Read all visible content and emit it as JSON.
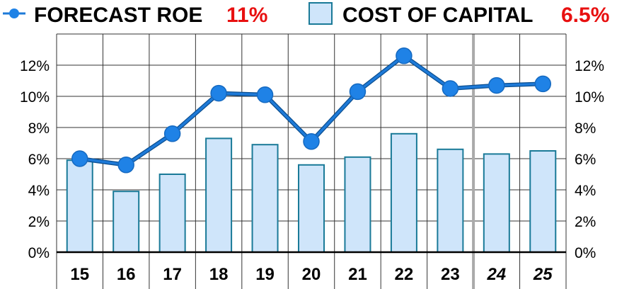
{
  "legend": {
    "roe_label": "FORECAST ROE",
    "roe_value": "11%",
    "coc_label": "COST OF CAPITAL",
    "coc_value": "6.5%"
  },
  "colors": {
    "roe_line": "#1e7ad8",
    "roe_marker": "#1f82e6",
    "bar_fill": "#cfe5fa",
    "bar_stroke": "#1a7a98",
    "legend_value": "#e81010",
    "grid": "#333333",
    "forecast_divider": "#aaaaaa"
  },
  "chart_data": {
    "type": "bar",
    "categories": [
      "15",
      "16",
      "17",
      "18",
      "19",
      "20",
      "21",
      "22",
      "23",
      "24",
      "25"
    ],
    "italic_categories": [
      "24",
      "25"
    ],
    "series": [
      {
        "name": "COST OF CAPITAL",
        "kind": "bar",
        "values": [
          5.9,
          3.9,
          5.0,
          7.3,
          6.9,
          5.6,
          6.1,
          7.6,
          6.6,
          6.3,
          6.5
        ]
      },
      {
        "name": "FORECAST ROE",
        "kind": "line",
        "values": [
          6.0,
          5.6,
          7.6,
          10.2,
          10.1,
          7.1,
          10.3,
          12.6,
          10.5,
          10.7,
          10.8
        ]
      }
    ],
    "ylim": [
      0,
      14
    ],
    "yticks": [
      "0%",
      "2%",
      "4%",
      "6%",
      "8%",
      "10%",
      "12%"
    ],
    "ytick_values": [
      0,
      2,
      4,
      6,
      8,
      10,
      12
    ],
    "y_axes": "left-and-right",
    "grid": true,
    "forecast_starts_after": "23",
    "legend_position": "top"
  }
}
